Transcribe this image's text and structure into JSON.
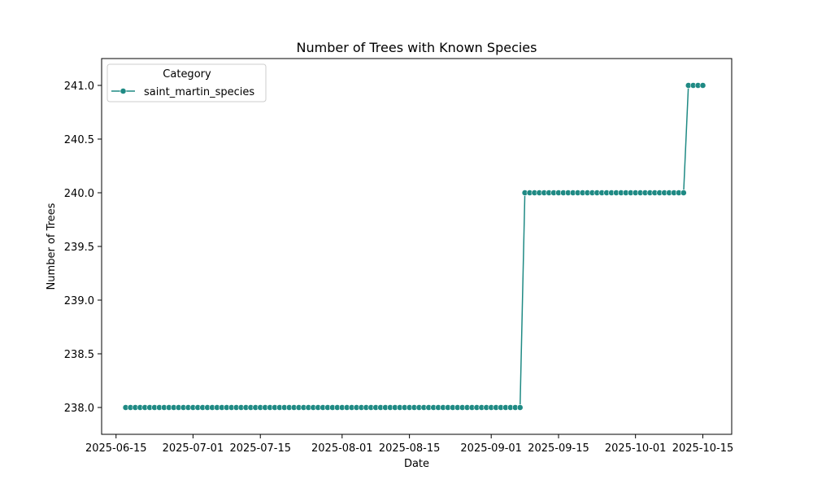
{
  "chart_data": {
    "type": "line",
    "title": "Number of Trees with Known Species",
    "xlabel": "Date",
    "ylabel": "Number of Trees",
    "x_ticks": [
      "2025-06-15",
      "2025-07-01",
      "2025-07-15",
      "2025-08-01",
      "2025-08-15",
      "2025-09-01",
      "2025-09-15",
      "2025-10-01",
      "2025-10-15"
    ],
    "y_ticks": [
      "238.0",
      "238.5",
      "239.0",
      "239.5",
      "240.0",
      "240.5",
      "241.0"
    ],
    "xlim": [
      "2025-06-12",
      "2025-10-21"
    ],
    "ylim": [
      237.75,
      241.25
    ],
    "grid": false,
    "legend": {
      "title": "Category",
      "position": "top-left"
    },
    "series": [
      {
        "name": "saint_martin_species",
        "color": "#1f8a84",
        "marker": "circle",
        "segments": [
          {
            "start": "2025-06-17",
            "end": "2025-09-07",
            "value": 238
          },
          {
            "start": "2025-09-08",
            "end": "2025-10-11",
            "value": 240
          },
          {
            "start": "2025-10-12",
            "end": "2025-10-15",
            "value": 241
          }
        ]
      }
    ]
  }
}
